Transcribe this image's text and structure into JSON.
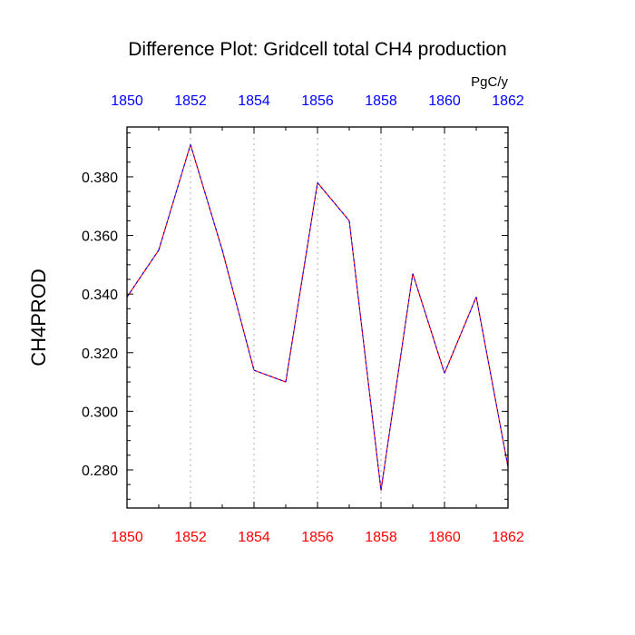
{
  "chart_data": {
    "type": "line",
    "title": "Difference Plot: Gridcell total CH4 production",
    "units": "PgC/y",
    "ylabel": "CH4PROD",
    "xlabel": "",
    "xlim": [
      1850,
      1862
    ],
    "ylim": [
      0.267,
      0.397
    ],
    "x_ticks": [
      1850,
      1852,
      1854,
      1856,
      1858,
      1860,
      1862
    ],
    "y_ticks": [
      0.28,
      0.3,
      0.32,
      0.34,
      0.36,
      0.38
    ],
    "y_tick_labels": [
      "0.280",
      "0.300",
      "0.320",
      "0.340",
      "0.360",
      "0.380"
    ],
    "top_axis_color": "#0000ff",
    "bottom_axis_color": "#ff0000",
    "grid": "vertical dotted at major x ticks",
    "series": [
      {
        "color_a": "#ff0000",
        "color_b": "#0000ff",
        "style": "dashed overlay",
        "x": [
          1850,
          1851,
          1852,
          1853,
          1854,
          1855,
          1856,
          1857,
          1858,
          1859,
          1860,
          1861,
          1862
        ],
        "values": [
          0.339,
          0.355,
          0.391,
          0.355,
          0.314,
          0.31,
          0.378,
          0.365,
          0.273,
          0.347,
          0.313,
          0.339,
          0.281
        ]
      }
    ]
  }
}
